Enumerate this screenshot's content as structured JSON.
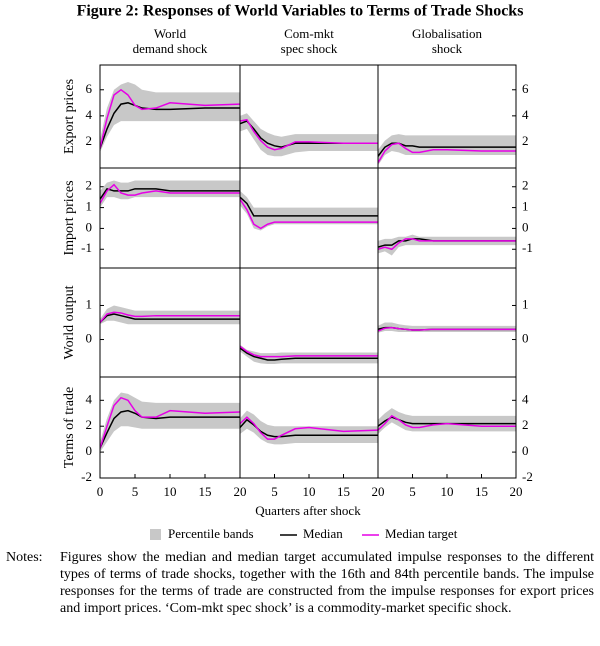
{
  "title": "Figure 2: Responses of World Variables to Terms of Trade Shocks",
  "chart_data": {
    "type": "line",
    "columns": [
      {
        "title": [
          "World",
          "demand shock"
        ]
      },
      {
        "title": [
          "Com-mkt",
          "spec shock"
        ]
      },
      {
        "title": [
          "Globalisation",
          "shock"
        ]
      }
    ],
    "rows": [
      {
        "label": "Export prices",
        "ylim": [
          0,
          7.9
        ],
        "yticks": [
          2,
          4,
          6
        ]
      },
      {
        "label": "Import prices",
        "ylim": [
          -1.9,
          2.9
        ],
        "yticks": [
          -1,
          0,
          1,
          2
        ]
      },
      {
        "label": "World output",
        "ylim": [
          -1.1,
          2.1
        ],
        "yticks": [
          0,
          1
        ]
      },
      {
        "label": "Terms of trade",
        "ylim": [
          -2,
          5.8
        ],
        "yticks": [
          -2,
          0,
          2,
          4
        ]
      }
    ],
    "x": [
      0,
      1,
      2,
      3,
      4,
      5,
      6,
      8,
      10,
      15,
      20
    ],
    "xlim": [
      0,
      20
    ],
    "xticks": [
      0,
      5,
      10,
      15,
      20
    ],
    "xlabel": "Quarters after shock",
    "band": {
      "name": "Percentile bands",
      "color": "#c8c8c8"
    },
    "series": [
      {
        "name": "Median",
        "color": "#000000"
      },
      {
        "name": "Median target",
        "color": "#e600e6"
      }
    ],
    "panels": [
      [
        {
          "low": [
            1.2,
            2.4,
            3.3,
            3.6,
            3.6,
            3.6,
            3.6,
            3.6,
            3.6,
            3.6,
            3.6
          ],
          "high": [
            2.2,
            4.6,
            6.0,
            6.4,
            6.6,
            6.4,
            6.0,
            5.8,
            5.8,
            5.8,
            5.8
          ],
          "series": [
            [
              1.5,
              3.0,
              4.2,
              4.9,
              5.0,
              4.8,
              4.6,
              4.5,
              4.5,
              4.6,
              4.6
            ],
            [
              1.5,
              3.8,
              5.6,
              6.0,
              5.6,
              4.8,
              4.5,
              4.6,
              5.0,
              4.8,
              4.9
            ]
          ]
        },
        {
          "low": [
            2.8,
            3.0,
            2.2,
            1.4,
            1.0,
            0.9,
            0.9,
            1.2,
            1.3,
            1.3,
            1.3
          ],
          "high": [
            4.0,
            4.2,
            3.6,
            3.0,
            2.7,
            2.5,
            2.4,
            2.6,
            2.6,
            2.6,
            2.6
          ],
          "series": [
            [
              3.4,
              3.6,
              3.0,
              2.3,
              1.9,
              1.7,
              1.6,
              1.9,
              1.9,
              1.9,
              1.9
            ],
            [
              3.6,
              3.7,
              2.8,
              2.1,
              1.6,
              1.4,
              1.5,
              2.0,
              2.0,
              1.9,
              1.9
            ]
          ]
        },
        {
          "low": [
            0.2,
            1.0,
            1.3,
            1.2,
            1.0,
            1.0,
            1.0,
            1.0,
            1.0,
            1.0,
            1.0
          ],
          "high": [
            1.4,
            2.1,
            2.5,
            2.6,
            2.5,
            2.5,
            2.5,
            2.5,
            2.5,
            2.5,
            2.5
          ],
          "series": [
            [
              0.9,
              1.6,
              1.9,
              1.9,
              1.7,
              1.7,
              1.6,
              1.6,
              1.6,
              1.6,
              1.6
            ],
            [
              0.4,
              1.3,
              1.8,
              1.9,
              1.5,
              1.2,
              1.2,
              1.4,
              1.4,
              1.3,
              1.3
            ]
          ]
        }
      ],
      [
        {
          "low": [
            1.0,
            1.5,
            1.5,
            1.4,
            1.4,
            1.5,
            1.5,
            1.5,
            1.5,
            1.5,
            1.5
          ],
          "high": [
            1.8,
            2.2,
            2.3,
            2.2,
            2.2,
            2.3,
            2.3,
            2.3,
            2.3,
            2.3,
            2.3
          ],
          "series": [
            [
              1.4,
              1.9,
              1.8,
              1.8,
              1.8,
              1.9,
              1.9,
              1.9,
              1.8,
              1.8,
              1.8
            ],
            [
              1.2,
              1.8,
              2.1,
              1.7,
              1.6,
              1.6,
              1.7,
              1.8,
              1.7,
              1.7,
              1.7
            ]
          ]
        },
        {
          "low": [
            1.1,
            0.7,
            0.0,
            -0.1,
            0.1,
            0.2,
            0.2,
            0.2,
            0.2,
            0.2,
            0.2
          ],
          "high": [
            1.8,
            1.5,
            1.0,
            1.0,
            1.0,
            1.0,
            1.0,
            1.0,
            1.0,
            1.0,
            1.0
          ],
          "series": [
            [
              1.5,
              1.2,
              0.6,
              0.6,
              0.6,
              0.6,
              0.6,
              0.6,
              0.6,
              0.6,
              0.6
            ],
            [
              1.4,
              0.9,
              0.2,
              0.0,
              0.2,
              0.3,
              0.3,
              0.3,
              0.3,
              0.3,
              0.3
            ]
          ]
        },
        {
          "low": [
            -1.2,
            -1.1,
            -1.3,
            -0.9,
            -0.8,
            -0.8,
            -0.8,
            -0.8,
            -0.8,
            -0.8,
            -0.8
          ],
          "high": [
            -0.6,
            -0.5,
            -0.5,
            -0.4,
            -0.4,
            -0.3,
            -0.4,
            -0.4,
            -0.4,
            -0.4,
            -0.4
          ],
          "series": [
            [
              -0.9,
              -0.8,
              -0.8,
              -0.6,
              -0.6,
              -0.5,
              -0.5,
              -0.6,
              -0.6,
              -0.6,
              -0.6
            ],
            [
              -1.0,
              -0.9,
              -1.0,
              -0.7,
              -0.5,
              -0.5,
              -0.6,
              -0.6,
              -0.6,
              -0.6,
              -0.6
            ]
          ]
        }
      ],
      [
        {
          "low": [
            0.45,
            0.55,
            0.55,
            0.5,
            0.45,
            0.45,
            0.45,
            0.45,
            0.45,
            0.45,
            0.45
          ],
          "high": [
            0.6,
            0.9,
            1.0,
            0.95,
            0.9,
            0.85,
            0.85,
            0.85,
            0.85,
            0.85,
            0.85
          ],
          "series": [
            [
              0.5,
              0.7,
              0.75,
              0.7,
              0.65,
              0.6,
              0.6,
              0.6,
              0.6,
              0.6,
              0.6
            ],
            [
              0.5,
              0.75,
              0.8,
              0.78,
              0.72,
              0.68,
              0.68,
              0.7,
              0.7,
              0.7,
              0.7
            ]
          ]
        },
        {
          "low": [
            -0.35,
            -0.5,
            -0.65,
            -0.7,
            -0.72,
            -0.72,
            -0.7,
            -0.7,
            -0.7,
            -0.7,
            -0.7
          ],
          "high": [
            -0.15,
            -0.3,
            -0.35,
            -0.4,
            -0.4,
            -0.4,
            -0.38,
            -0.38,
            -0.38,
            -0.38,
            -0.38
          ],
          "series": [
            [
              -0.25,
              -0.4,
              -0.5,
              -0.55,
              -0.6,
              -0.6,
              -0.58,
              -0.55,
              -0.55,
              -0.55,
              -0.55
            ],
            [
              -0.2,
              -0.35,
              -0.45,
              -0.5,
              -0.5,
              -0.5,
              -0.5,
              -0.48,
              -0.48,
              -0.48,
              -0.48
            ]
          ]
        },
        {
          "low": [
            0.2,
            0.25,
            0.25,
            0.22,
            0.22,
            0.22,
            0.22,
            0.22,
            0.22,
            0.22,
            0.22
          ],
          "high": [
            0.4,
            0.5,
            0.5,
            0.45,
            0.42,
            0.4,
            0.4,
            0.4,
            0.4,
            0.4,
            0.4
          ],
          "series": [
            [
              0.3,
              0.35,
              0.35,
              0.32,
              0.3,
              0.28,
              0.28,
              0.3,
              0.3,
              0.3,
              0.3
            ],
            [
              0.25,
              0.33,
              0.35,
              0.32,
              0.3,
              0.28,
              0.28,
              0.3,
              0.3,
              0.3,
              0.3
            ]
          ]
        }
      ],
      [
        {
          "low": [
            0.0,
            0.8,
            1.6,
            2.0,
            2.0,
            1.9,
            1.8,
            1.8,
            1.8,
            1.8,
            1.8
          ],
          "high": [
            0.8,
            2.6,
            4.0,
            4.6,
            4.5,
            4.2,
            3.9,
            3.8,
            3.8,
            3.8,
            3.8
          ],
          "series": [
            [
              0.3,
              1.5,
              2.6,
              3.1,
              3.2,
              3.0,
              2.7,
              2.6,
              2.7,
              2.7,
              2.7
            ],
            [
              0.3,
              2.0,
              3.6,
              4.2,
              4.0,
              3.2,
              2.7,
              2.7,
              3.2,
              3.0,
              3.1
            ]
          ]
        },
        {
          "low": [
            1.4,
            1.8,
            1.5,
            1.0,
            0.7,
            0.6,
            0.6,
            0.7,
            0.7,
            0.7,
            0.7
          ],
          "high": [
            2.6,
            3.2,
            2.9,
            2.4,
            2.1,
            2.0,
            2.0,
            2.0,
            2.0,
            2.0,
            2.0
          ],
          "series": [
            [
              1.9,
              2.5,
              2.1,
              1.6,
              1.3,
              1.2,
              1.2,
              1.3,
              1.3,
              1.3,
              1.3
            ],
            [
              2.2,
              2.7,
              2.2,
              1.5,
              1.0,
              1.0,
              1.3,
              1.8,
              1.9,
              1.6,
              1.7
            ]
          ]
        },
        {
          "low": [
            1.4,
            1.9,
            2.3,
            2.0,
            1.7,
            1.6,
            1.6,
            1.6,
            1.6,
            1.6,
            1.6
          ],
          "high": [
            2.5,
            3.0,
            3.4,
            3.1,
            2.9,
            2.8,
            2.8,
            2.8,
            2.8,
            2.8,
            2.8
          ],
          "series": [
            [
              2.0,
              2.4,
              2.7,
              2.5,
              2.3,
              2.2,
              2.2,
              2.2,
              2.2,
              2.2,
              2.2
            ],
            [
              1.7,
              2.2,
              2.8,
              2.5,
              2.1,
              1.9,
              1.9,
              2.1,
              2.2,
              2.0,
              2.0
            ]
          ]
        }
      ]
    ]
  },
  "notes": {
    "label": "Notes:",
    "text": "Figures show the median and median target accumulated impulse responses to the different types of terms of trade shocks, together with the 16th and 84th percentile bands. The impulse responses for the terms of trade are constructed from the impulse responses for export prices and import prices. ‘Com-mkt spec shock’ is a commodity-market specific shock."
  }
}
